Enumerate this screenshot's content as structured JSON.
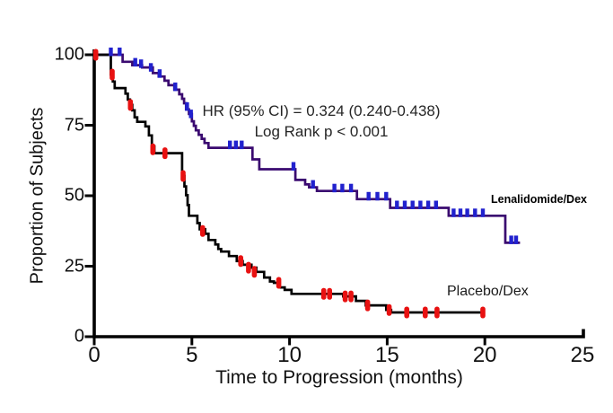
{
  "chart_data": {
    "type": "line",
    "km_style": "step-survival",
    "title": "",
    "xlabel": "Time to Progression (months)",
    "ylabel": "Proportion of Subjects",
    "xlim": [
      0,
      25
    ],
    "ylim": [
      0,
      100
    ],
    "x_ticks": [
      "0",
      "5",
      "10",
      "15",
      "20",
      "25"
    ],
    "y_ticks": [
      "100",
      "75",
      "50",
      "25",
      "0"
    ],
    "grid": false,
    "legend_position": "labels-on-plot",
    "annotations": {
      "hr_line": "HR (95% CI) = 0.324 (0.240-0.438)",
      "logrank_line": "Log Rank p < 0.001"
    },
    "axis_color": "#000000",
    "series": [
      {
        "name": "Lenalidomide/Dex",
        "line_color": "#3A0A70",
        "censor_color": "#2121CE",
        "censor_style": "tick-up",
        "steps": [
          [
            0,
            100
          ],
          [
            1.45,
            97.5
          ],
          [
            1.95,
            96.3
          ],
          [
            2.45,
            95.5
          ],
          [
            3.0,
            93.5
          ],
          [
            3.3,
            92.3
          ],
          [
            3.6,
            90.8
          ],
          [
            3.8,
            89.2
          ],
          [
            4.1,
            87.6
          ],
          [
            4.35,
            86
          ],
          [
            4.5,
            84.4
          ],
          [
            4.6,
            82.8
          ],
          [
            4.7,
            80.6
          ],
          [
            4.85,
            79
          ],
          [
            5.0,
            76.4
          ],
          [
            5.1,
            74.8
          ],
          [
            5.2,
            73.2
          ],
          [
            5.35,
            71.6
          ],
          [
            5.5,
            70.2
          ],
          [
            5.65,
            68.7
          ],
          [
            5.85,
            67
          ],
          [
            8.1,
            62.9
          ],
          [
            8.45,
            59.4
          ],
          [
            10.3,
            55.6
          ],
          [
            10.8,
            54
          ],
          [
            11.0,
            53
          ],
          [
            11.4,
            51.7
          ],
          [
            13.45,
            48.8
          ],
          [
            15.15,
            45.7
          ],
          [
            18.15,
            42.9
          ],
          [
            21.05,
            33.3
          ]
        ],
        "end_x": 21.8,
        "censors": [
          [
            0.85,
            100
          ],
          [
            1.3,
            100
          ],
          [
            2.1,
            96.3
          ],
          [
            2.4,
            95.8
          ],
          [
            2.9,
            94.5
          ],
          [
            3.35,
            92.3
          ],
          [
            4.15,
            87.6
          ],
          [
            4.75,
            80.6
          ],
          [
            4.95,
            78
          ],
          [
            6.95,
            67
          ],
          [
            7.25,
            67
          ],
          [
            7.55,
            67
          ],
          [
            10.2,
            59.4
          ],
          [
            11.2,
            53
          ],
          [
            12.3,
            51.7
          ],
          [
            12.7,
            51.7
          ],
          [
            13.15,
            51.7
          ],
          [
            14.05,
            48.8
          ],
          [
            14.5,
            48.8
          ],
          [
            14.95,
            48.8
          ],
          [
            15.5,
            45.7
          ],
          [
            15.9,
            45.7
          ],
          [
            16.3,
            45.7
          ],
          [
            16.7,
            45.7
          ],
          [
            17.1,
            45.7
          ],
          [
            17.5,
            45.7
          ],
          [
            18.4,
            42.9
          ],
          [
            18.75,
            42.9
          ],
          [
            19.1,
            42.9
          ],
          [
            19.5,
            42.9
          ],
          [
            19.9,
            42.9
          ],
          [
            21.35,
            33.3
          ],
          [
            21.6,
            33.3
          ]
        ]
      },
      {
        "name": "Placebo/Dex",
        "line_color": "#000000",
        "censor_color": "#E81111",
        "censor_style": "capsule-centered",
        "steps": [
          [
            0,
            100
          ],
          [
            0.85,
            93
          ],
          [
            0.95,
            90.5
          ],
          [
            1.05,
            88.2
          ],
          [
            1.6,
            86.2
          ],
          [
            1.72,
            84.1
          ],
          [
            1.83,
            82.2
          ],
          [
            1.95,
            80.3
          ],
          [
            2.07,
            77.8
          ],
          [
            2.2,
            76.2
          ],
          [
            2.62,
            74.6
          ],
          [
            2.8,
            71.4
          ],
          [
            2.95,
            67.5
          ],
          [
            3.08,
            65.1
          ],
          [
            4.5,
            57
          ],
          [
            4.62,
            53.3
          ],
          [
            4.7,
            50.2
          ],
          [
            4.78,
            46.7
          ],
          [
            4.85,
            42.9
          ],
          [
            5.28,
            40.3
          ],
          [
            5.4,
            38.1
          ],
          [
            5.68,
            36.5
          ],
          [
            5.85,
            34.3
          ],
          [
            6.2,
            32.7
          ],
          [
            6.35,
            31.1
          ],
          [
            6.5,
            30.2
          ],
          [
            6.9,
            28.6
          ],
          [
            7.3,
            26.8
          ],
          [
            7.6,
            25.5
          ],
          [
            8.05,
            24.5
          ],
          [
            8.3,
            23
          ],
          [
            8.7,
            21
          ],
          [
            9.0,
            19.6
          ],
          [
            9.2,
            19.1
          ],
          [
            9.5,
            17.5
          ],
          [
            9.75,
            16.6
          ],
          [
            10.1,
            15.2
          ],
          [
            12.75,
            14.3
          ],
          [
            13.4,
            12.7
          ],
          [
            13.9,
            11.1
          ],
          [
            14.95,
            9.5
          ],
          [
            15.2,
            8.6
          ]
        ],
        "end_x": 19.95,
        "censors": [
          [
            0.08,
            100
          ],
          [
            0.92,
            93
          ],
          [
            1.85,
            82.2
          ],
          [
            3.0,
            66.5
          ],
          [
            3.62,
            65.1
          ],
          [
            4.55,
            57
          ],
          [
            5.55,
            37.5
          ],
          [
            7.5,
            26.8
          ],
          [
            7.9,
            24.5
          ],
          [
            8.2,
            23
          ],
          [
            9.45,
            19.1
          ],
          [
            11.75,
            15.2
          ],
          [
            12.05,
            15.2
          ],
          [
            12.85,
            14.3
          ],
          [
            13.15,
            14.3
          ],
          [
            14.0,
            11.1
          ],
          [
            15.1,
            9.5
          ],
          [
            16.0,
            8.6
          ],
          [
            16.95,
            8.6
          ],
          [
            17.55,
            8.6
          ],
          [
            19.9,
            8.6
          ]
        ]
      }
    ]
  }
}
